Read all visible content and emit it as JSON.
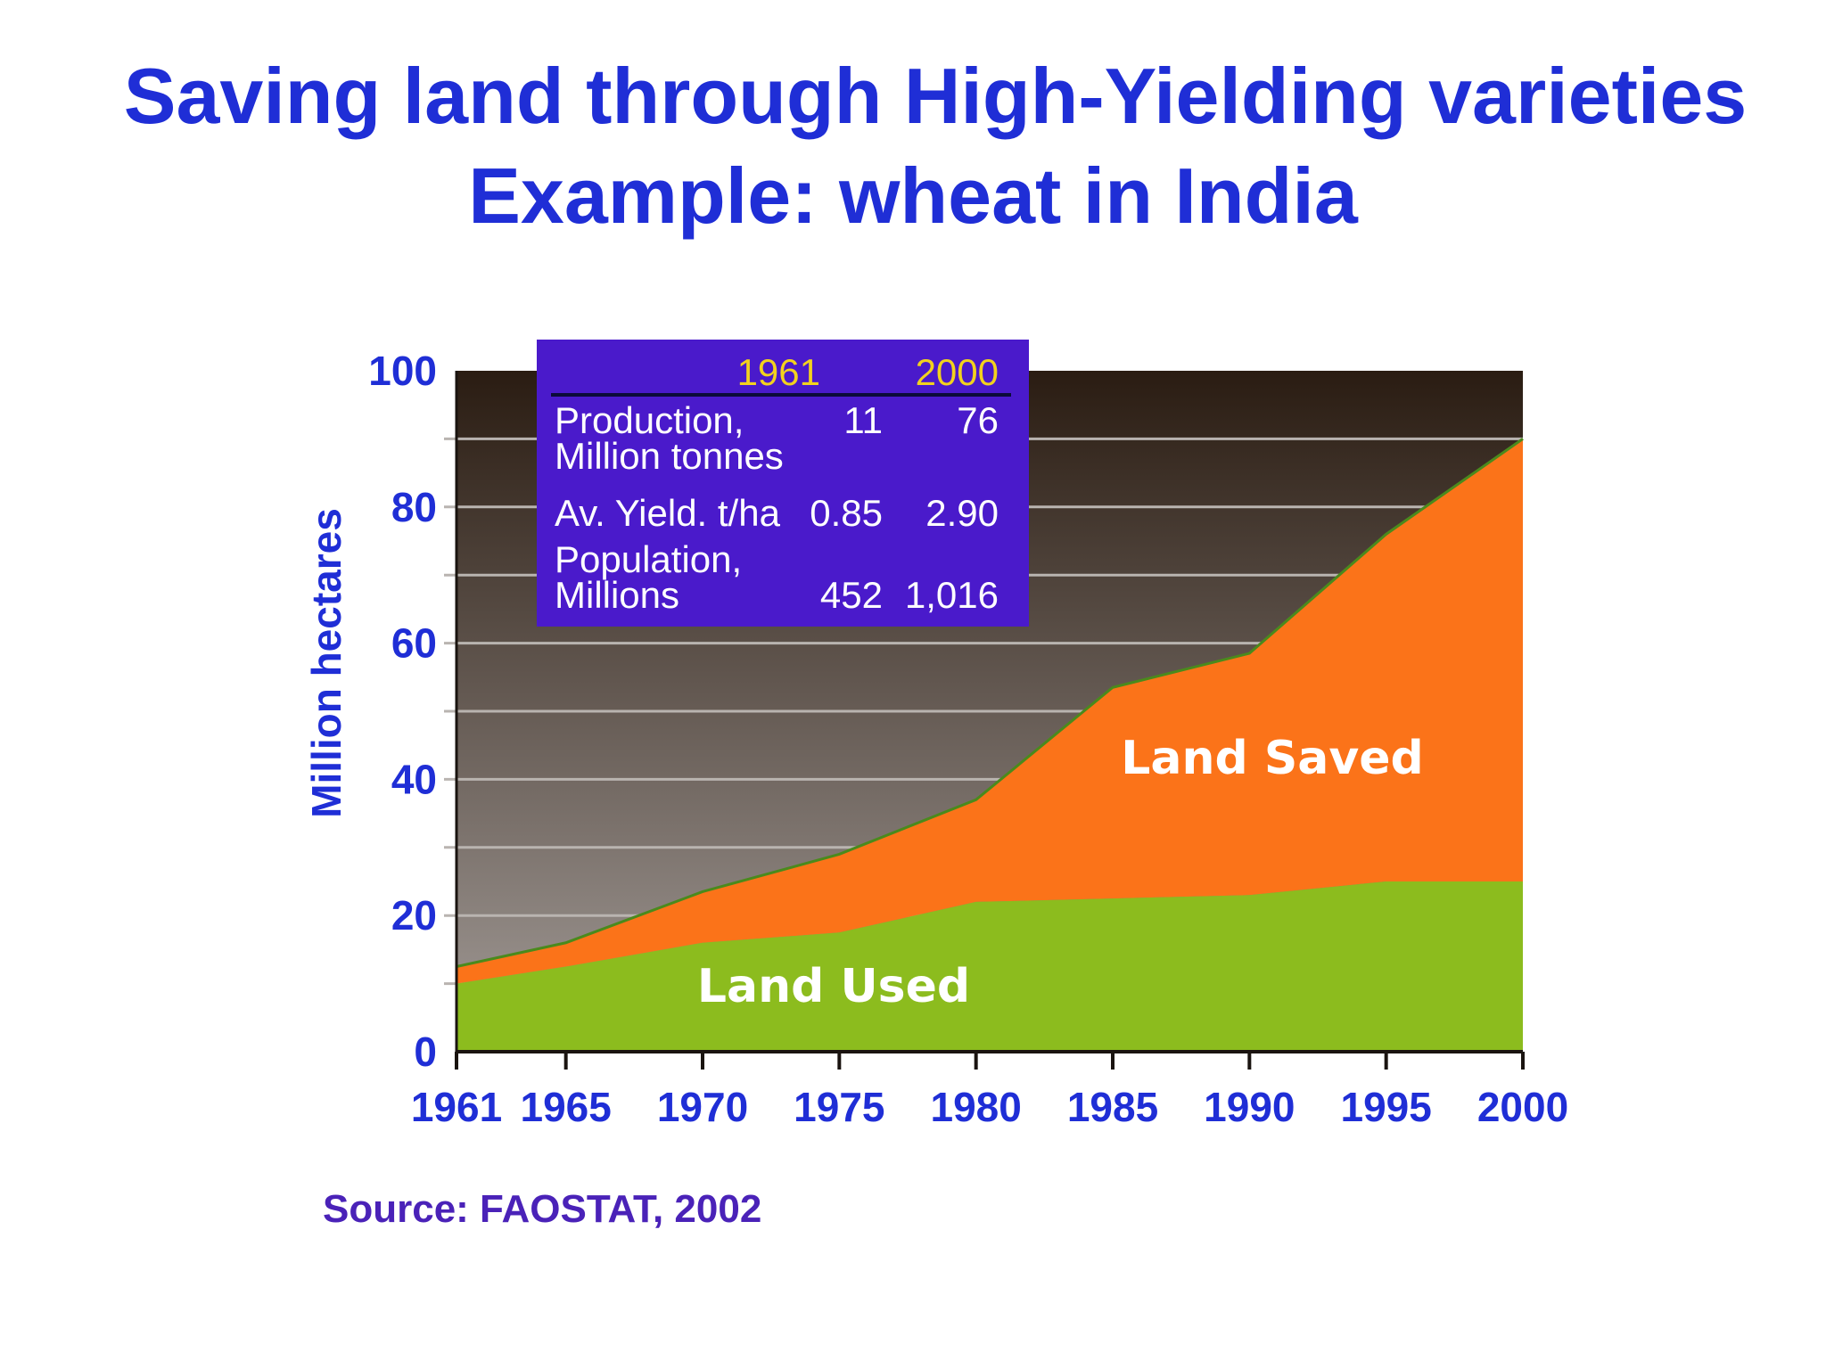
{
  "title": {
    "line1": "Saving land through High-Yielding varieties",
    "line2": "Example: wheat in India"
  },
  "source": "Source: FAOSTAT, 2002",
  "stats_table": {
    "year_headers": [
      "1961",
      "2000"
    ],
    "rows": [
      {
        "label_lines": [
          "Production,",
          "Million tonnes"
        ],
        "values": [
          "11",
          "76"
        ]
      },
      {
        "label_lines": [
          "Av. Yield. t/ha"
        ],
        "values": [
          "0.85",
          "2.90"
        ]
      },
      {
        "label_lines": [
          "Population,",
          "Millions"
        ],
        "values": [
          "452",
          "1,016"
        ]
      }
    ]
  },
  "colors": {
    "title": "#1f2ed6",
    "axis_text": "#1f2ed6",
    "source_text": "#4a22b8",
    "land_used": "#8cbc1e",
    "land_saved": "#fb7319",
    "plot_bg_top": "#2a1c12",
    "plot_bg_bottom": "#a39c98",
    "stats_box": "#4a1acb",
    "stats_year": "#f2d21e",
    "boundary_line": "#4a8a1c"
  },
  "chart_data": {
    "type": "area",
    "stacked": true,
    "ylabel": "Million hectares",
    "xlabel": "",
    "ylim": [
      0,
      100
    ],
    "yticks": [
      0,
      20,
      40,
      60,
      80,
      100
    ],
    "xticks": [
      1961,
      1965,
      1970,
      1975,
      1980,
      1985,
      1990,
      1995,
      2000
    ],
    "grid": true,
    "x": [
      1961,
      1965,
      1970,
      1975,
      1980,
      1985,
      1990,
      1995,
      2000
    ],
    "series": [
      {
        "name": "Land Used",
        "values": [
          10,
          12.5,
          16,
          17.5,
          22,
          22.5,
          23,
          25,
          25
        ]
      },
      {
        "name": "Land Saved",
        "values": [
          2.5,
          3.5,
          7.5,
          11.5,
          15,
          31,
          35.5,
          51,
          65
        ]
      }
    ]
  }
}
